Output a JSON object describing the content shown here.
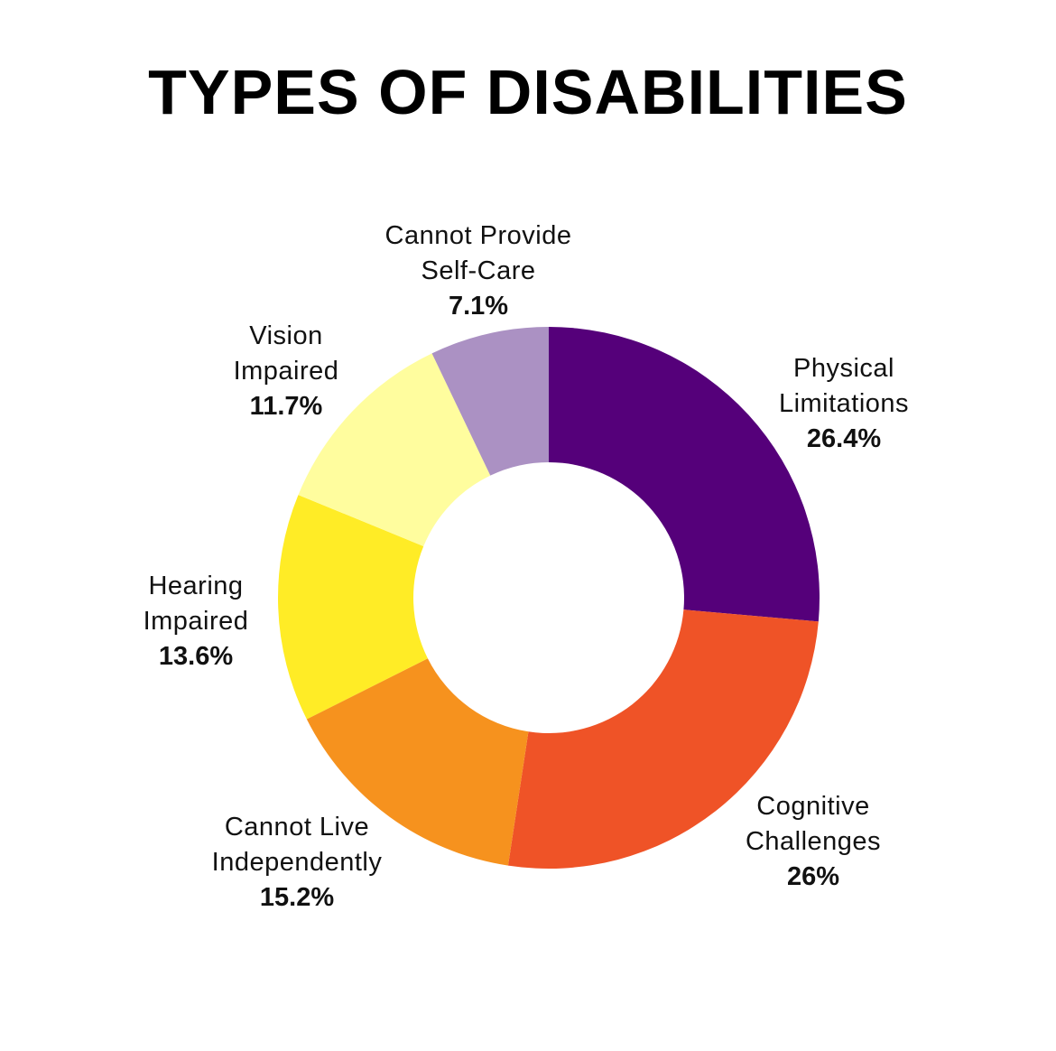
{
  "chart_data": {
    "type": "pie",
    "title": "TYPES OF DISABILITIES",
    "slices": [
      {
        "label_lines": [
          "Physical",
          "Limitations"
        ],
        "value": 26.4,
        "value_label": "26.4%",
        "color": "#55007a"
      },
      {
        "label_lines": [
          "Cognitive",
          "Challenges"
        ],
        "value": 26,
        "value_label": "26%",
        "color": "#ef5327"
      },
      {
        "label_lines": [
          "Cannot Live",
          "Independently"
        ],
        "value": 15.2,
        "value_label": "15.2%",
        "color": "#f6921e"
      },
      {
        "label_lines": [
          "Hearing",
          "Impaired"
        ],
        "value": 13.6,
        "value_label": "13.6%",
        "color": "#ffec26"
      },
      {
        "label_lines": [
          "Vision",
          "Impaired"
        ],
        "value": 11.7,
        "value_label": "11.7%",
        "color": "#fffd9e"
      },
      {
        "label_lines": [
          "Cannot Provide",
          "Self-Care"
        ],
        "value": 7.1,
        "value_label": "7.1%",
        "color": "#ab91c3"
      }
    ],
    "start_angle": "12 o'clock",
    "direction": "clockwise",
    "legend": "none"
  }
}
